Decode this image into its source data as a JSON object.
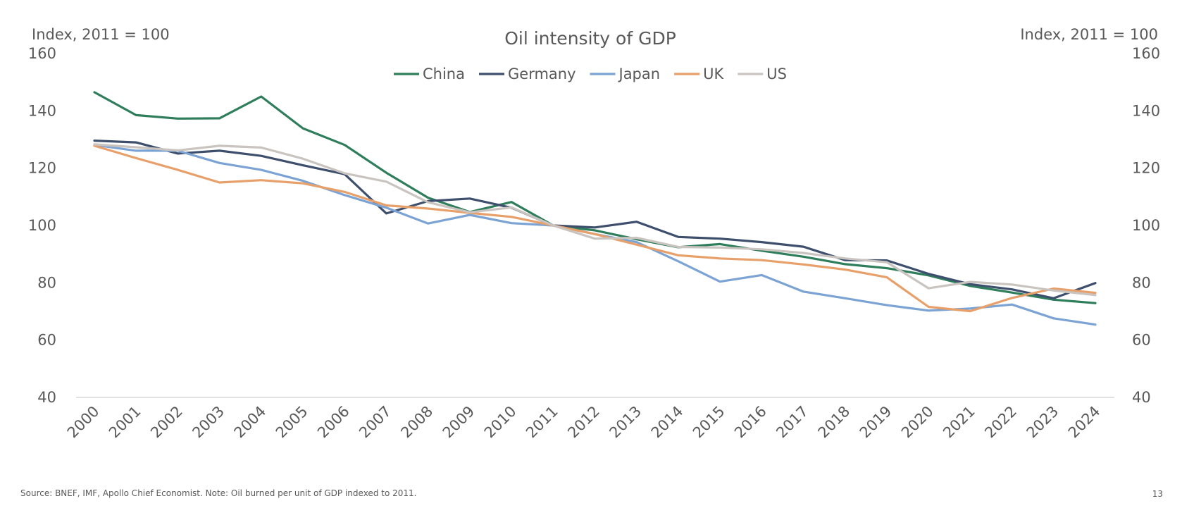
{
  "chart_data": {
    "type": "line",
    "title": "Oil intensity of GDP",
    "left_axis_unit": "Index, 2011 = 100",
    "right_axis_unit": "Index, 2011 = 100",
    "ylim": [
      40,
      160
    ],
    "yticks": [
      40,
      60,
      80,
      100,
      120,
      140,
      160
    ],
    "categories": [
      "2000",
      "2001",
      "2002",
      "2003",
      "2004",
      "2005",
      "2006",
      "2007",
      "2008",
      "2009",
      "2010",
      "2011",
      "2012",
      "2013",
      "2014",
      "2015",
      "2016",
      "2017",
      "2018",
      "2019",
      "2020",
      "2021",
      "2022",
      "2023",
      "2024"
    ],
    "legend_position": "top-center",
    "grid": false,
    "series": [
      {
        "name": "China",
        "color": "#2E7D5B",
        "values": [
          146.5,
          138.5,
          137.3,
          137.4,
          145,
          133.9,
          128.1,
          118.4,
          109.7,
          104.7,
          108.2,
          100,
          98.3,
          95.2,
          92.4,
          93.5,
          91.2,
          89.1,
          86.5,
          85.1,
          82.6,
          78.9,
          76.6,
          74.1,
          72.9
        ]
      },
      {
        "name": "Germany",
        "color": "#3D4F6C",
        "values": [
          129.6,
          129,
          125.1,
          126.1,
          124.3,
          121,
          117.9,
          104.2,
          108.5,
          109.4,
          106.2,
          100,
          99.3,
          101.3,
          96,
          95.4,
          94.2,
          92.6,
          87.9,
          87.8,
          83.1,
          79.5,
          77.7,
          74.6,
          79.9
        ]
      },
      {
        "name": "Japan",
        "color": "#7BA3D4",
        "values": [
          128.1,
          126.1,
          126.1,
          121.8,
          119.4,
          115.6,
          110.6,
          106.2,
          100.7,
          103.7,
          100.8,
          100,
          97,
          94.2,
          87.5,
          80.4,
          82.7,
          76.9,
          74.6,
          72.2,
          70.3,
          71,
          72.4,
          67.6,
          65.4
        ]
      },
      {
        "name": "UK",
        "color": "#E8A06A",
        "values": [
          127.8,
          123.5,
          119.4,
          115,
          115.8,
          114.7,
          111.7,
          107,
          105.9,
          104.4,
          103,
          100,
          97,
          93.3,
          89.6,
          88.5,
          87.9,
          86.4,
          84.6,
          81.9,
          71.6,
          70.1,
          74.7,
          78,
          76.5
        ]
      },
      {
        "name": "US",
        "color": "#C9C4BF",
        "values": [
          128.3,
          127.3,
          126.2,
          127.8,
          127.2,
          123.3,
          118.2,
          115.3,
          108.1,
          104.6,
          106.3,
          100,
          95.4,
          95.7,
          92.5,
          92.3,
          91.7,
          90.4,
          88.5,
          87.2,
          78.1,
          80.3,
          79.4,
          77.3,
          75.7
        ]
      }
    ]
  },
  "footer": {
    "source": "Source: BNEF, IMF, Apollo Chief Economist. Note: Oil burned per unit of GDP indexed to 2011.",
    "page_number": "13"
  }
}
